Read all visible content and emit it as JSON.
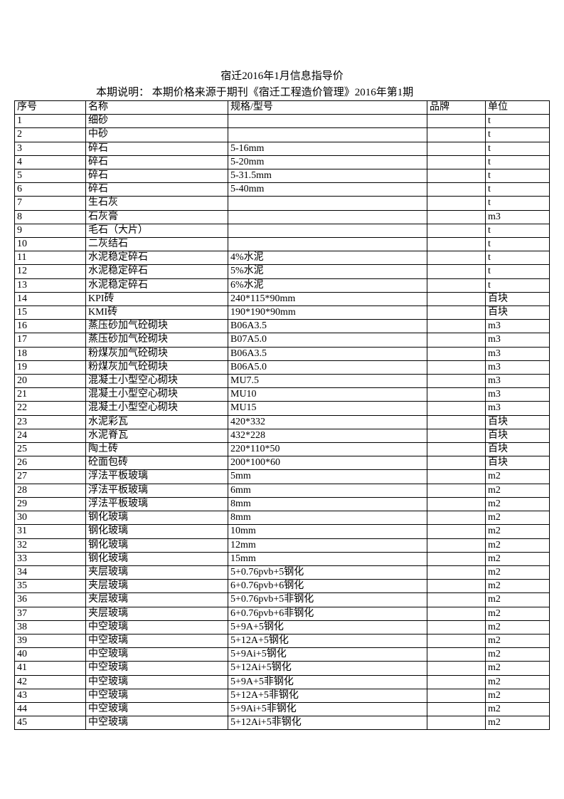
{
  "title": "宿迁2016年1月信息指导价",
  "subtitle": "本期说明： 本期价格来源于期刊《宿迁工程造价管理》2016年第1期",
  "columns": [
    "序号",
    "名称",
    "规格/型号",
    "品牌",
    "单位"
  ],
  "rows": [
    [
      "1",
      "细砂",
      "",
      "",
      "t"
    ],
    [
      "2",
      "中砂",
      "",
      "",
      "t"
    ],
    [
      "3",
      "碎石",
      "5-16mm",
      "",
      "t"
    ],
    [
      "4",
      "碎石",
      "5-20mm",
      "",
      "t"
    ],
    [
      "5",
      "碎石",
      "5-31.5mm",
      "",
      "t"
    ],
    [
      "6",
      "碎石",
      "5-40mm",
      "",
      "t"
    ],
    [
      "7",
      "生石灰",
      "",
      "",
      "t"
    ],
    [
      "8",
      "石灰膏",
      "",
      "",
      "m3"
    ],
    [
      "9",
      "毛石（大片）",
      "",
      "",
      "t"
    ],
    [
      "10",
      "二灰结石",
      "",
      "",
      "t"
    ],
    [
      "11",
      "水泥稳定碎石",
      "4%水泥",
      "",
      "t"
    ],
    [
      "12",
      "水泥稳定碎石",
      "5%水泥",
      "",
      "t"
    ],
    [
      "13",
      "水泥稳定碎石",
      "6%水泥",
      "",
      "t"
    ],
    [
      "14",
      "KPI砖",
      "240*115*90mm",
      "",
      "百块"
    ],
    [
      "15",
      "KMI砖",
      "190*190*90mm",
      "",
      "百块"
    ],
    [
      "16",
      "蒸压砂加气砼砌块",
      "B06A3.5",
      "",
      "m3"
    ],
    [
      "17",
      "蒸压砂加气砼砌块",
      "B07A5.0",
      "",
      "m3"
    ],
    [
      "18",
      "粉煤灰加气砼砌块",
      "B06A3.5",
      "",
      "m3"
    ],
    [
      "19",
      "粉煤灰加气砼砌块",
      "B06A5.0",
      "",
      "m3"
    ],
    [
      "20",
      "混凝土小型空心砌块",
      "MU7.5",
      "",
      "m3"
    ],
    [
      "21",
      "混凝土小型空心砌块",
      "MU10",
      "",
      "m3"
    ],
    [
      "22",
      "混凝土小型空心砌块",
      "MU15",
      "",
      "m3"
    ],
    [
      "23",
      "水泥彩瓦",
      "420*332",
      "",
      "百块"
    ],
    [
      "24",
      "水泥脊瓦",
      "432*228",
      "",
      "百块"
    ],
    [
      "25",
      "陶土砖",
      "220*110*50",
      "",
      "百块"
    ],
    [
      "26",
      "砼面包砖",
      "200*100*60",
      "",
      "百块"
    ],
    [
      "27",
      "浮法平板玻璃",
      "5mm",
      "",
      "m2"
    ],
    [
      "28",
      "浮法平板玻璃",
      "6mm",
      "",
      "m2"
    ],
    [
      "29",
      "浮法平板玻璃",
      "8mm",
      "",
      "m2"
    ],
    [
      "30",
      "钢化玻璃",
      "8mm",
      "",
      "m2"
    ],
    [
      "31",
      "钢化玻璃",
      "10mm",
      "",
      "m2"
    ],
    [
      "32",
      "钢化玻璃",
      "12mm",
      "",
      "m2"
    ],
    [
      "33",
      "钢化玻璃",
      "15mm",
      "",
      "m2"
    ],
    [
      "34",
      "夹层玻璃",
      "5+0.76pvb+5钢化",
      "",
      "m2"
    ],
    [
      "35",
      "夹层玻璃",
      "6+0.76pvb+6钢化",
      "",
      "m2"
    ],
    [
      "36",
      "夹层玻璃",
      "5+0.76pvb+5非钢化",
      "",
      "m2"
    ],
    [
      "37",
      "夹层玻璃",
      "6+0.76pvb+6非钢化",
      "",
      "m2"
    ],
    [
      "38",
      "中空玻璃",
      "5+9A+5钢化",
      "",
      "m2"
    ],
    [
      "39",
      "中空玻璃",
      "5+12A+5钢化",
      "",
      "m2"
    ],
    [
      "40",
      "中空玻璃",
      "5+9Ai+5钢化",
      "",
      "m2"
    ],
    [
      "41",
      "中空玻璃",
      "5+12Ai+5钢化",
      "",
      "m2"
    ],
    [
      "42",
      "中空玻璃",
      "5+9A+5非钢化",
      "",
      "m2"
    ],
    [
      "43",
      "中空玻璃",
      "5+12A+5非钢化",
      "",
      "m2"
    ],
    [
      "44",
      "中空玻璃",
      "5+9Ai+5非钢化",
      "",
      "m2"
    ],
    [
      "45",
      "中空玻璃",
      "5+12Ai+5非钢化",
      "",
      "m2"
    ]
  ]
}
